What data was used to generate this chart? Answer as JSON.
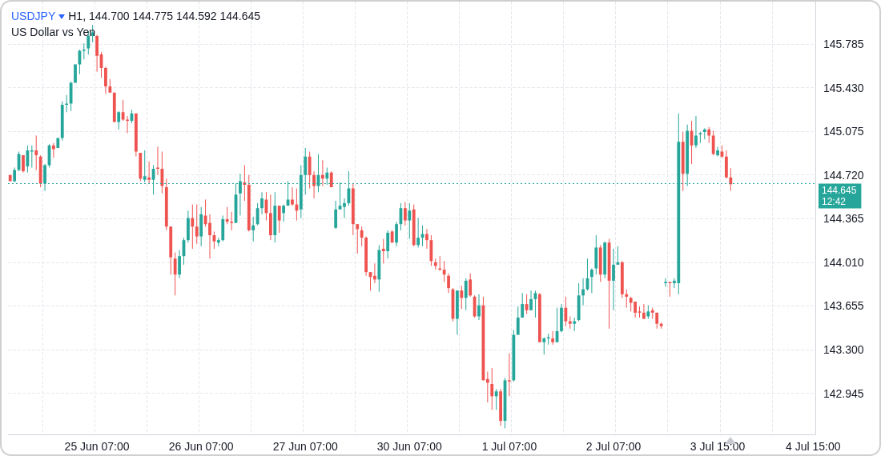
{
  "chart_data": {
    "type": "candlestick",
    "title": "USDJPY",
    "subtitle": "US Dollar vs Yen",
    "annotations": [
      "H1, 144.700 144.775 144.592 144.645",
      "12:42"
    ],
    "categories": [
      null,
      null,
      null,
      null,
      null,
      null,
      null,
      null,
      null,
      null,
      null,
      null,
      null,
      null,
      null,
      null,
      null,
      null,
      null,
      null,
      "25 Jun 07:00",
      null,
      null,
      null,
      null,
      null,
      null,
      null,
      null,
      null,
      null,
      null,
      null,
      null,
      null,
      null,
      null,
      null,
      null,
      null,
      null,
      null,
      null,
      null,
      "26 Jun 07:00",
      null,
      null,
      null,
      null,
      null,
      null,
      null,
      null,
      null,
      null,
      null,
      null,
      null,
      null,
      null,
      null,
      null,
      null,
      null,
      null,
      null,
      null,
      null,
      "27 Jun 07:00",
      null,
      null,
      null,
      null,
      null,
      null,
      null,
      null,
      null,
      null,
      null,
      null,
      null,
      null,
      null,
      null,
      null,
      null,
      null,
      null,
      null,
      null,
      null,
      "30 Jun 07:00",
      null,
      null,
      null,
      null,
      null,
      null,
      null,
      null,
      null,
      null,
      null,
      null,
      null,
      null,
      null,
      null,
      null,
      null,
      null,
      null,
      null,
      null,
      "1 Jul 07:00",
      null,
      null,
      null,
      null,
      null,
      null,
      null,
      null,
      null,
      null,
      null,
      null,
      null,
      null,
      null,
      null,
      null,
      null,
      null,
      null,
      null,
      null,
      null,
      "2 Jul 07:00",
      null,
      null,
      null,
      null,
      null,
      null,
      null,
      null,
      null,
      null,
      null,
      null,
      null,
      null,
      null,
      null,
      null,
      null,
      null,
      null,
      null,
      null,
      null,
      "3 Jul 15:00",
      null,
      null,
      null,
      null,
      null,
      null,
      null,
      null,
      null,
      null,
      null,
      null,
      null,
      null,
      null,
      null,
      null,
      null,
      null,
      null,
      null,
      "4 Jul 15:00"
    ],
    "ohlc": [
      [
        144.72,
        144.72,
        144.67,
        144.67
      ],
      [
        144.67,
        144.78,
        144.66,
        144.76
      ],
      [
        144.76,
        144.91,
        144.75,
        144.89
      ],
      [
        144.88,
        144.88,
        144.74,
        144.75
      ],
      [
        144.79,
        144.96,
        144.74,
        144.92
      ],
      [
        144.91,
        144.96,
        144.78,
        144.92
      ],
      [
        144.92,
        145.04,
        144.76,
        144.88
      ],
      [
        144.87,
        144.88,
        144.62,
        144.65
      ],
      [
        144.65,
        144.81,
        144.59,
        144.8
      ],
      [
        144.8,
        144.97,
        144.78,
        144.96
      ],
      [
        144.96,
        144.98,
        144.86,
        144.93
      ],
      [
        144.94,
        145.02,
        144.94,
        145.02
      ],
      [
        145.02,
        145.32,
        145.0,
        145.29
      ],
      [
        145.29,
        145.37,
        145.23,
        145.3
      ],
      [
        145.3,
        145.48,
        145.24,
        145.47
      ],
      [
        145.47,
        145.62,
        145.47,
        145.62
      ],
      [
        145.62,
        145.74,
        145.54,
        145.73
      ],
      [
        145.73,
        145.79,
        145.66,
        145.74
      ],
      [
        145.75,
        145.89,
        145.7,
        145.85
      ],
      [
        145.85,
        145.94,
        145.8,
        145.88
      ],
      [
        145.85,
        145.86,
        145.56,
        145.69
      ],
      [
        145.7,
        145.72,
        145.51,
        145.59
      ],
      [
        145.59,
        145.6,
        145.38,
        145.44
      ],
      [
        145.44,
        145.5,
        145.39,
        145.39
      ],
      [
        145.39,
        145.39,
        145.15,
        145.15
      ],
      [
        145.15,
        145.24,
        145.09,
        145.23
      ],
      [
        145.23,
        145.33,
        145.16,
        145.17
      ],
      [
        145.17,
        145.2,
        145.06,
        145.16
      ],
      [
        145.16,
        145.25,
        145.14,
        145.22
      ],
      [
        145.22,
        145.22,
        144.87,
        144.91
      ],
      [
        144.9,
        144.9,
        144.67,
        144.69
      ],
      [
        144.68,
        144.92,
        144.66,
        144.71
      ],
      [
        144.7,
        144.83,
        144.65,
        144.68
      ],
      [
        144.68,
        144.8,
        144.56,
        144.77
      ],
      [
        144.78,
        144.95,
        144.72,
        144.77
      ],
      [
        144.77,
        144.91,
        144.57,
        144.63
      ],
      [
        144.62,
        144.69,
        144.27,
        144.3
      ],
      [
        144.3,
        144.3,
        143.91,
        144.05
      ],
      [
        144.04,
        144.09,
        143.74,
        143.91
      ],
      [
        143.91,
        144.11,
        143.88,
        144.06
      ],
      [
        144.06,
        144.21,
        143.99,
        144.19
      ],
      [
        144.19,
        144.43,
        144.17,
        144.37
      ],
      [
        144.37,
        144.48,
        144.12,
        144.3
      ],
      [
        144.3,
        144.48,
        144.16,
        144.22
      ],
      [
        144.22,
        144.46,
        144.14,
        144.4
      ],
      [
        144.39,
        144.52,
        144.3,
        144.32
      ],
      [
        144.33,
        144.4,
        144.04,
        144.23
      ],
      [
        144.23,
        144.26,
        144.12,
        144.18
      ],
      [
        144.17,
        144.21,
        144.14,
        144.19
      ],
      [
        144.19,
        144.39,
        144.18,
        144.36
      ],
      [
        144.36,
        144.46,
        144.32,
        144.34
      ],
      [
        144.34,
        144.42,
        144.27,
        144.33
      ],
      [
        144.33,
        144.65,
        144.33,
        144.56
      ],
      [
        144.57,
        144.73,
        144.39,
        144.67
      ],
      [
        144.66,
        144.8,
        144.51,
        144.64
      ],
      [
        144.64,
        144.72,
        144.26,
        144.27
      ],
      [
        144.27,
        144.38,
        144.18,
        144.31
      ],
      [
        144.32,
        144.49,
        144.31,
        144.45
      ],
      [
        144.45,
        144.58,
        144.4,
        144.53
      ],
      [
        144.52,
        144.58,
        144.35,
        144.41
      ],
      [
        144.41,
        144.56,
        144.19,
        144.23
      ],
      [
        144.23,
        144.58,
        144.17,
        144.47
      ],
      [
        144.47,
        144.47,
        144.25,
        144.35
      ],
      [
        144.41,
        144.48,
        144.34,
        144.47
      ],
      [
        144.47,
        144.67,
        144.47,
        144.52
      ],
      [
        144.52,
        144.62,
        144.47,
        144.48
      ],
      [
        144.48,
        144.61,
        144.35,
        144.43
      ],
      [
        144.44,
        144.8,
        144.37,
        144.72
      ],
      [
        144.72,
        144.94,
        144.56,
        144.87
      ],
      [
        144.87,
        144.91,
        144.61,
        144.72
      ],
      [
        144.72,
        144.75,
        144.53,
        144.63
      ],
      [
        144.63,
        144.89,
        144.58,
        144.72
      ],
      [
        144.72,
        144.84,
        144.63,
        144.69
      ],
      [
        144.69,
        144.78,
        144.64,
        144.74
      ],
      [
        144.74,
        144.75,
        144.62,
        144.62
      ],
      [
        144.29,
        144.51,
        144.28,
        144.44
      ],
      [
        144.44,
        144.66,
        144.44,
        144.47
      ],
      [
        144.46,
        144.53,
        144.37,
        144.49
      ],
      [
        144.49,
        144.75,
        144.47,
        144.61
      ],
      [
        144.61,
        144.65,
        144.23,
        144.32
      ],
      [
        144.32,
        144.32,
        144.08,
        144.28
      ],
      [
        144.27,
        144.3,
        144.14,
        144.21
      ],
      [
        144.21,
        144.22,
        143.9,
        143.93
      ],
      [
        143.93,
        143.93,
        143.78,
        143.89
      ],
      [
        143.9,
        144.0,
        143.84,
        143.87
      ],
      [
        143.87,
        144.15,
        143.77,
        144.11
      ],
      [
        144.12,
        144.2,
        144.0,
        144.1
      ],
      [
        144.1,
        144.27,
        144.04,
        144.25
      ],
      [
        144.26,
        144.27,
        144.17,
        144.17
      ],
      [
        144.17,
        144.34,
        144.14,
        144.32
      ],
      [
        144.32,
        144.49,
        144.27,
        144.45
      ],
      [
        144.45,
        144.5,
        144.31,
        144.35
      ],
      [
        144.35,
        144.49,
        144.2,
        144.43
      ],
      [
        144.44,
        144.48,
        144.14,
        144.15
      ],
      [
        144.15,
        144.37,
        144.13,
        144.21
      ],
      [
        144.21,
        144.31,
        144.14,
        144.24
      ],
      [
        144.24,
        144.28,
        144.12,
        144.19
      ],
      [
        144.19,
        144.23,
        143.98,
        144.02
      ],
      [
        144.01,
        144.04,
        143.95,
        143.98
      ],
      [
        143.96,
        144.06,
        143.94,
        143.95
      ],
      [
        143.95,
        144.02,
        143.85,
        143.91
      ],
      [
        143.9,
        143.92,
        143.76,
        143.8
      ],
      [
        143.79,
        143.8,
        143.53,
        143.55
      ],
      [
        143.55,
        143.78,
        143.42,
        143.78
      ],
      [
        143.78,
        143.82,
        143.63,
        143.72
      ],
      [
        143.72,
        143.88,
        143.62,
        143.86
      ],
      [
        143.87,
        143.92,
        143.73,
        143.74
      ],
      [
        143.73,
        143.74,
        143.56,
        143.57
      ],
      [
        143.57,
        143.75,
        143.54,
        143.66
      ],
      [
        143.66,
        143.73,
        143.05,
        143.05
      ],
      [
        143.06,
        143.12,
        142.87,
        143.03
      ],
      [
        143.02,
        143.15,
        142.81,
        142.92
      ],
      [
        142.92,
        142.98,
        142.81,
        142.96
      ],
      [
        142.96,
        142.98,
        142.68,
        142.72
      ],
      [
        142.72,
        143.07,
        142.66,
        143.05
      ],
      [
        143.05,
        143.27,
        142.92,
        143.04
      ],
      [
        143.05,
        143.46,
        143.04,
        143.42
      ],
      [
        143.42,
        143.65,
        143.42,
        143.56
      ],
      [
        143.56,
        143.76,
        143.56,
        143.67
      ],
      [
        143.67,
        143.75,
        143.59,
        143.62
      ],
      [
        143.62,
        143.78,
        143.62,
        143.71
      ],
      [
        143.71,
        143.78,
        143.56,
        143.76
      ],
      [
        143.75,
        143.76,
        143.36,
        143.36
      ],
      [
        143.36,
        143.4,
        143.26,
        143.39
      ],
      [
        143.39,
        143.43,
        143.34,
        143.4
      ],
      [
        143.39,
        143.45,
        143.34,
        143.36
      ],
      [
        143.36,
        143.64,
        143.36,
        143.45
      ],
      [
        143.45,
        143.67,
        143.44,
        143.64
      ],
      [
        143.64,
        143.73,
        143.49,
        143.53
      ],
      [
        143.53,
        143.57,
        143.47,
        143.51
      ],
      [
        143.51,
        143.56,
        143.45,
        143.53
      ],
      [
        143.54,
        143.84,
        143.53,
        143.74
      ],
      [
        143.74,
        143.88,
        143.66,
        143.79
      ],
      [
        143.79,
        144.04,
        143.78,
        143.88
      ],
      [
        143.89,
        143.96,
        143.76,
        143.95
      ],
      [
        143.96,
        144.23,
        143.91,
        144.13
      ],
      [
        144.13,
        144.15,
        143.85,
        143.91
      ],
      [
        143.91,
        144.18,
        143.88,
        144.17
      ],
      [
        144.17,
        144.2,
        143.47,
        143.86
      ],
      [
        143.86,
        144.12,
        143.62,
        143.99
      ],
      [
        143.99,
        144.14,
        143.99,
        144.01
      ],
      [
        144.01,
        144.02,
        143.72,
        143.75
      ],
      [
        143.75,
        143.79,
        143.64,
        143.73
      ],
      [
        143.72,
        143.73,
        143.61,
        143.68
      ],
      [
        143.69,
        143.69,
        143.56,
        143.6
      ],
      [
        143.61,
        143.65,
        143.56,
        143.6
      ],
      [
        143.6,
        143.67,
        143.55,
        143.55
      ],
      [
        143.57,
        143.66,
        143.55,
        143.61
      ],
      [
        143.62,
        143.64,
        143.55,
        143.6
      ],
      [
        143.6,
        143.6,
        143.47,
        143.51
      ],
      [
        143.51,
        143.52,
        143.47,
        143.49
      ],
      [
        143.84,
        143.88,
        143.81,
        143.85
      ],
      [
        143.85,
        143.85,
        143.73,
        143.84
      ],
      [
        143.84,
        143.88,
        143.8,
        143.86
      ],
      [
        143.84,
        145.22,
        143.75,
        144.99
      ],
      [
        144.99,
        145.07,
        144.59,
        144.73
      ],
      [
        144.73,
        145.13,
        144.63,
        145.08
      ],
      [
        145.08,
        145.16,
        144.81,
        144.96
      ],
      [
        144.96,
        145.2,
        144.94,
        145.04
      ],
      [
        145.05,
        145.07,
        144.98,
        145.06
      ],
      [
        145.07,
        145.1,
        145.01,
        145.09
      ],
      [
        145.09,
        145.11,
        144.98,
        145.04
      ],
      [
        145.04,
        145.08,
        144.88,
        144.89
      ],
      [
        144.88,
        144.95,
        144.87,
        144.92
      ],
      [
        144.91,
        144.96,
        144.86,
        144.87
      ],
      [
        144.87,
        144.92,
        144.69,
        144.7
      ],
      [
        144.7,
        144.775,
        144.592,
        144.645
      ],
      null,
      null,
      null,
      null,
      null,
      null,
      null,
      null,
      null,
      null,
      null,
      null,
      null,
      null,
      null,
      null,
      null,
      null,
      null
    ],
    "ylim": [
      142.61,
      146.13
    ],
    "yticks": [
      142.945,
      {
        "value": 143.3,
        "label": "143.300"
      },
      143.655,
      {
        "value": 144.01,
        "label": "144.010"
      },
      144.365,
      {
        "value": 144.72,
        "label": "144.720"
      },
      145.075,
      {
        "value": 145.43,
        "label": "145.430"
      },
      145.785
    ],
    "ref_lines": [
      {
        "axis": "y",
        "value": 144.645,
        "label": "144.645",
        "color": "#26a69a",
        "line_style": "dotted"
      }
    ],
    "grid": true
  }
}
